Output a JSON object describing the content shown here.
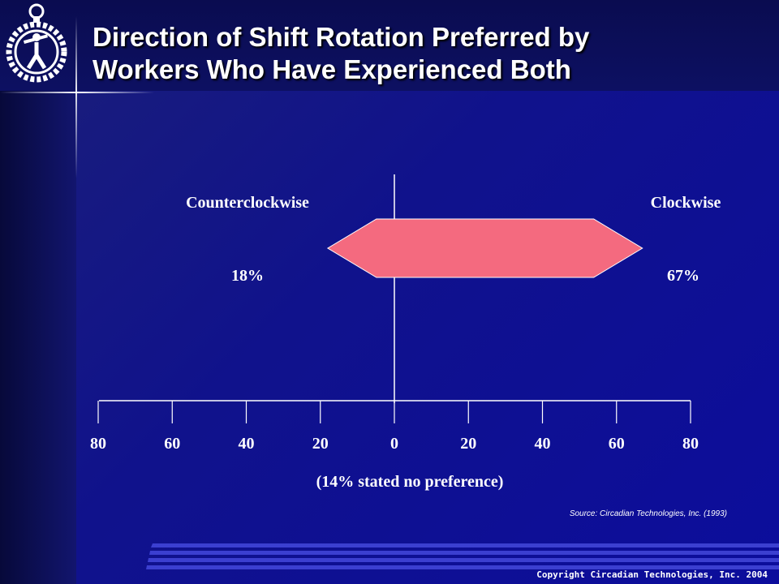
{
  "slide": {
    "title_line1": "Direction of Shift Rotation Preferred by",
    "title_line2": "Workers Who Have Experienced Both",
    "note": "(14% stated no preference)",
    "source": "Source: Circadian Technologies, Inc. (1993)",
    "copyright": "Copyright Circadian Technologies, Inc. 2004"
  },
  "logo": {
    "icon": "stopwatch-person-icon"
  },
  "colors": {
    "bar": "#f46a7f",
    "background": "#10128c",
    "text": "#ffffff"
  },
  "chart_data": {
    "type": "bar",
    "orientation": "horizontal-diverging",
    "categories": [
      "Counterclockwise",
      "Clockwise"
    ],
    "values": [
      18,
      67
    ],
    "value_labels": [
      "18%",
      "67%"
    ],
    "xlim": [
      -80,
      80
    ],
    "ticks": [
      80,
      60,
      40,
      20,
      0,
      20,
      40,
      60,
      80
    ],
    "grid": false
  }
}
